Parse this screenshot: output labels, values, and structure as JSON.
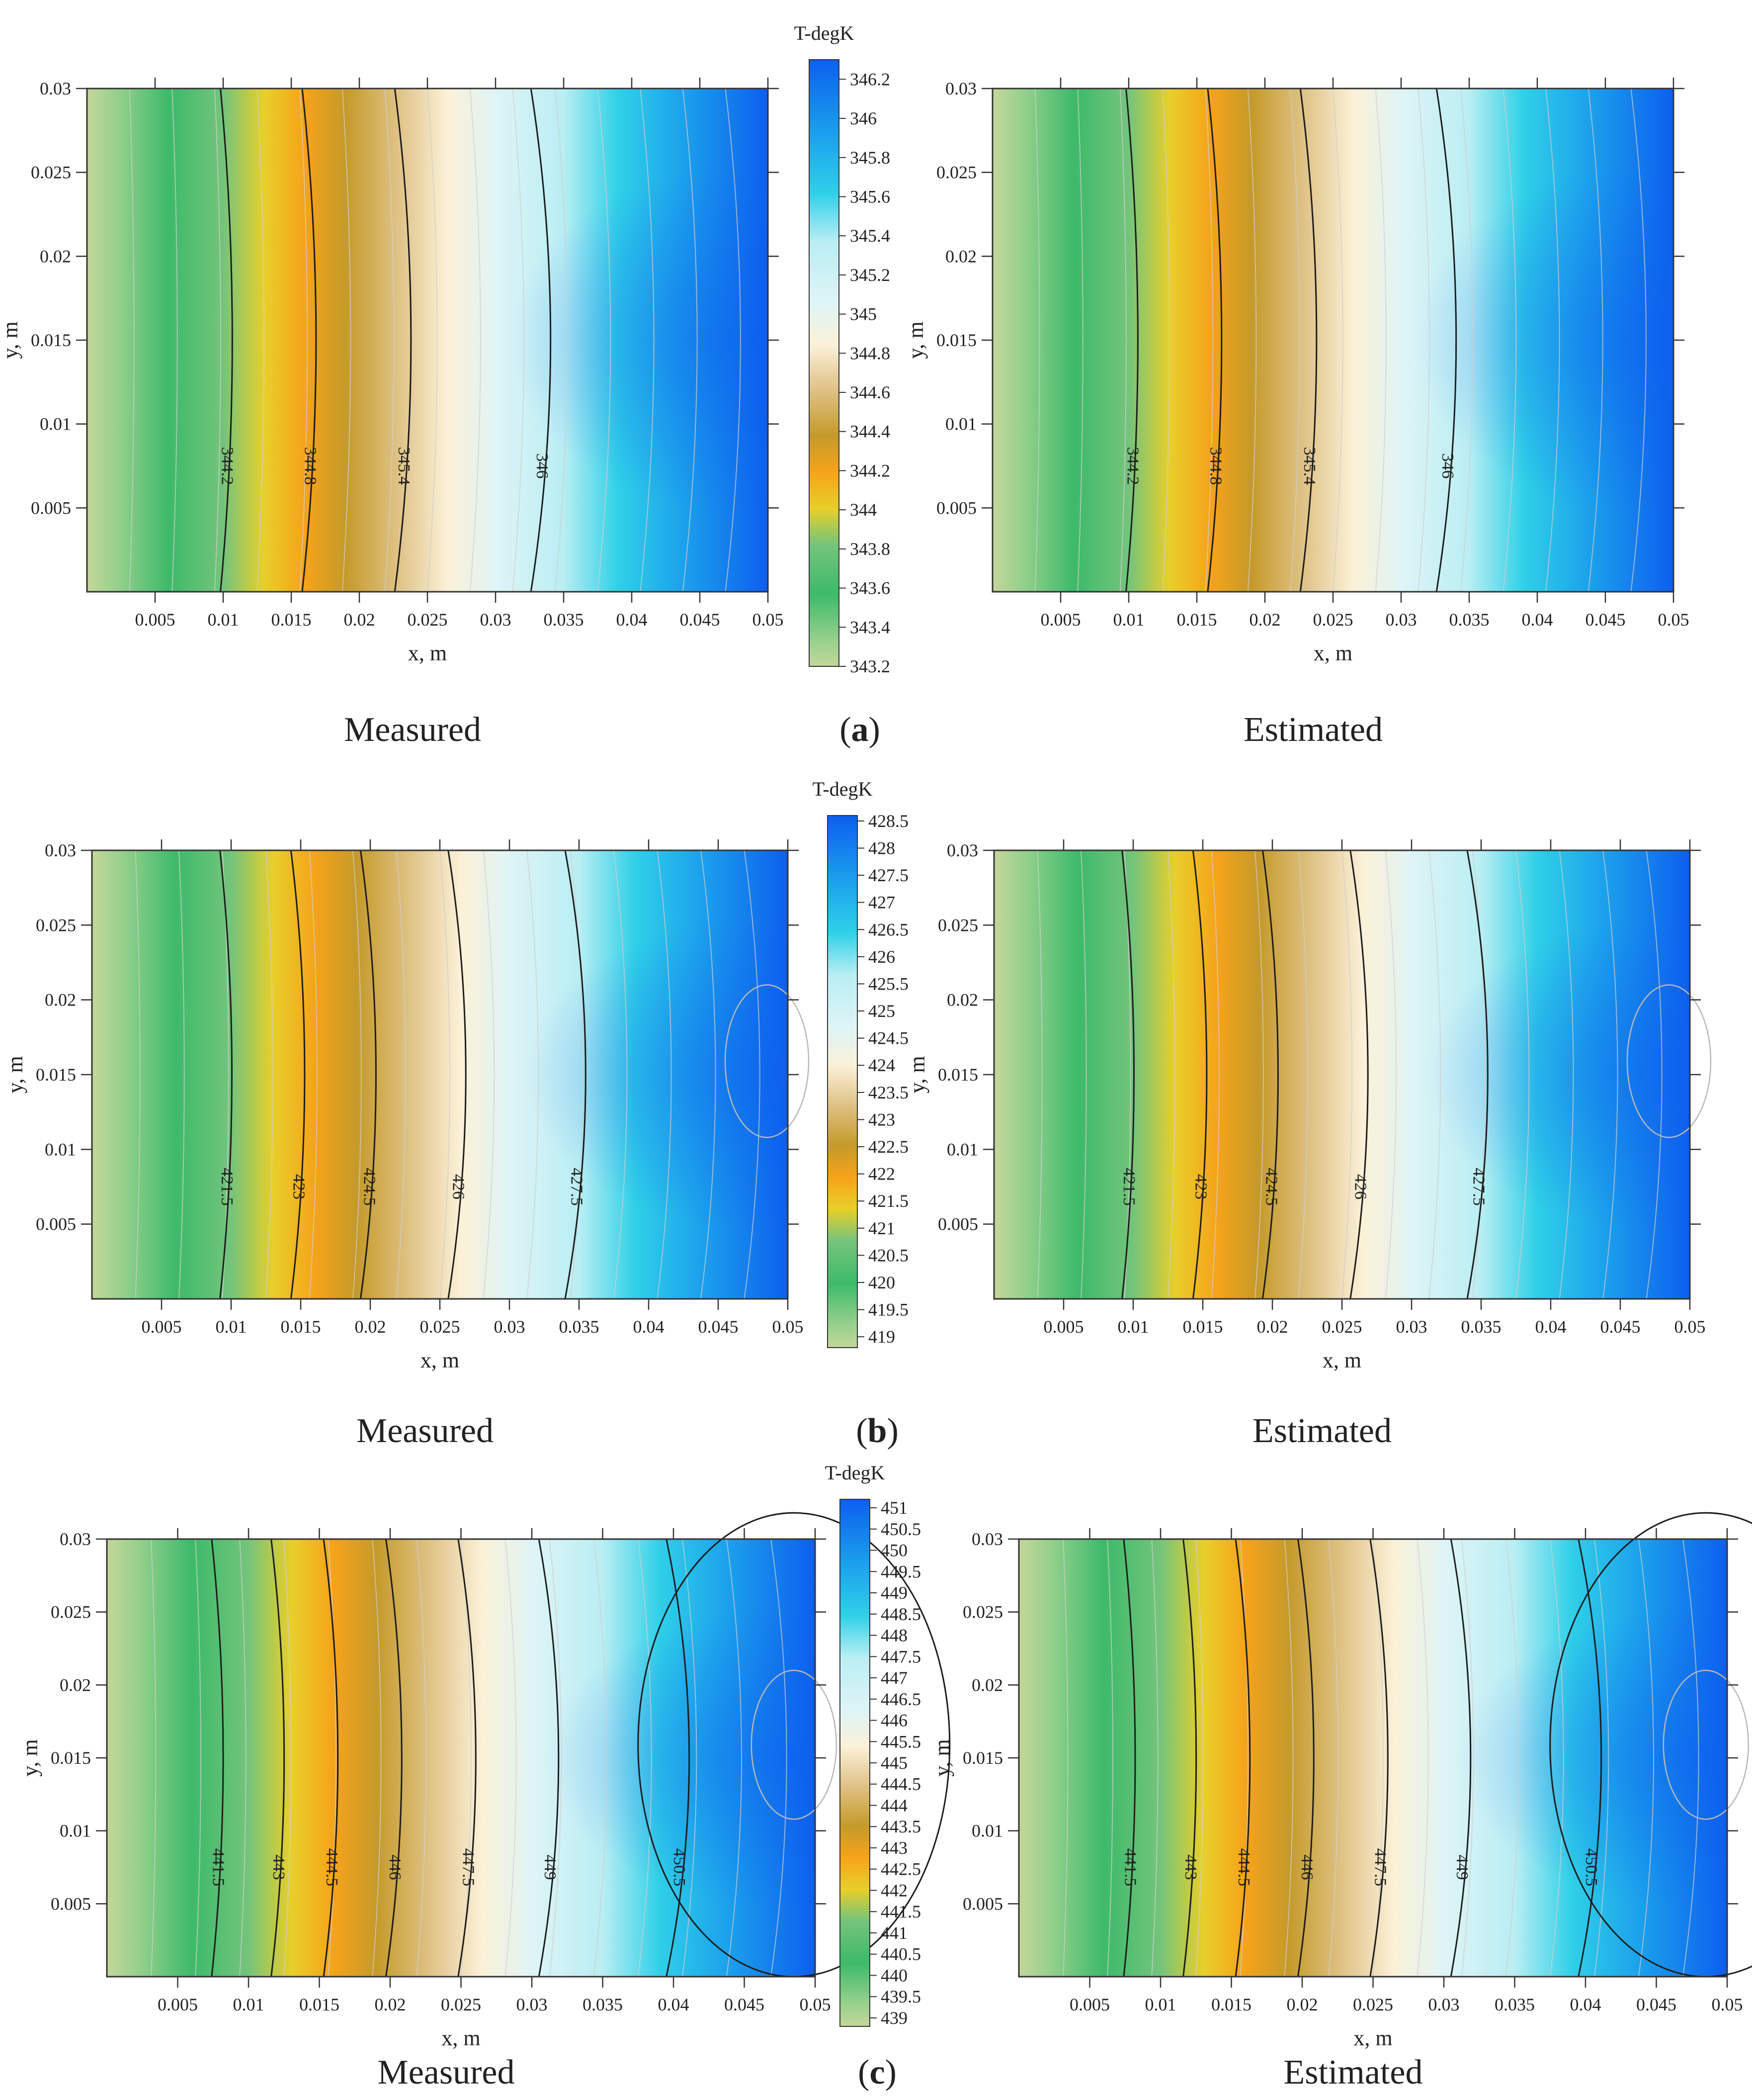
{
  "figure": {
    "colorbar_title": "T-degK",
    "x_axis_label": "x, m",
    "y_axis_label": "y, m",
    "left_caption": "Measured",
    "right_caption": "Estimated"
  },
  "chart_data": [
    {
      "type": "heatmap",
      "panel_label": "a",
      "title_left": "Measured",
      "title_right": "Estimated",
      "xlabel": "x, m",
      "ylabel": "y, m",
      "xlim": [
        0,
        0.05
      ],
      "ylim": [
        0,
        0.03
      ],
      "x_ticks": [
        0.005,
        0.01,
        0.015,
        0.02,
        0.025,
        0.03,
        0.035,
        0.04,
        0.045,
        0.05
      ],
      "y_ticks": [
        0.005,
        0.01,
        0.015,
        0.02,
        0.025,
        0.03
      ],
      "colorbar": {
        "title": "T-degK",
        "min": 343.2,
        "max": 346.3,
        "ticks": [
          343.2,
          343.4,
          343.6,
          343.8,
          344,
          344.2,
          344.4,
          344.6,
          344.8,
          345,
          345.2,
          345.4,
          345.6,
          345.8,
          346,
          346.2
        ]
      },
      "contour_labels": [
        {
          "value": 344.2,
          "x": 0.0098,
          "y": 0.0075
        },
        {
          "value": 344.8,
          "x": 0.0158,
          "y": 0.0075
        },
        {
          "value": 345.4,
          "x": 0.0226,
          "y": 0.0075
        },
        {
          "value": 346,
          "x": 0.0326,
          "y": 0.0075
        }
      ]
    },
    {
      "type": "heatmap",
      "panel_label": "b",
      "title_left": "Measured",
      "title_right": "Estimated",
      "xlabel": "x, m",
      "ylabel": "y, m",
      "xlim": [
        0,
        0.05
      ],
      "ylim": [
        0,
        0.03
      ],
      "x_ticks": [
        0.005,
        0.01,
        0.015,
        0.02,
        0.025,
        0.03,
        0.035,
        0.04,
        0.045,
        0.05
      ],
      "y_ticks": [
        0.005,
        0.01,
        0.015,
        0.02,
        0.025,
        0.03
      ],
      "colorbar": {
        "title": "T-degK",
        "min": 418.8,
        "max": 428.6,
        "ticks": [
          419,
          419.5,
          420,
          420.5,
          421,
          421.5,
          422,
          422.5,
          423,
          423.5,
          424,
          424.5,
          425,
          425.5,
          426,
          426.5,
          427,
          427.5,
          428,
          428.5
        ]
      },
      "contour_labels": [
        {
          "value": 421.5,
          "x": 0.0092,
          "y": 0.0075
        },
        {
          "value": 423,
          "x": 0.0143,
          "y": 0.0075
        },
        {
          "value": 424.5,
          "x": 0.0193,
          "y": 0.0075
        },
        {
          "value": 426,
          "x": 0.0256,
          "y": 0.0075
        },
        {
          "value": 427.5,
          "x": 0.034,
          "y": 0.0075
        }
      ]
    },
    {
      "type": "heatmap",
      "panel_label": "c",
      "title_left": "Measured",
      "title_right": "Estimated",
      "xlabel": "x, m",
      "ylabel": "y, m",
      "xlim": [
        0,
        0.05
      ],
      "ylim": [
        0,
        0.03
      ],
      "x_ticks": [
        0.005,
        0.01,
        0.015,
        0.02,
        0.025,
        0.03,
        0.035,
        0.04,
        0.045,
        0.05
      ],
      "y_ticks": [
        0.005,
        0.01,
        0.015,
        0.02,
        0.025,
        0.03
      ],
      "colorbar": {
        "title": "T-degK",
        "min": 438.8,
        "max": 451.2,
        "ticks": [
          439,
          439.5,
          440,
          440.5,
          441,
          441.5,
          442,
          442.5,
          443,
          443.5,
          444,
          444.5,
          445,
          445.5,
          446,
          446.5,
          447,
          447.5,
          448,
          448.5,
          449,
          449.5,
          450,
          450.5,
          451
        ]
      },
      "contour_labels": [
        {
          "value": 441.5,
          "x": 0.0074,
          "y": 0.0075
        },
        {
          "value": 443,
          "x": 0.0116,
          "y": 0.0075
        },
        {
          "value": 444.5,
          "x": 0.0153,
          "y": 0.0075
        },
        {
          "value": 446,
          "x": 0.0197,
          "y": 0.0075
        },
        {
          "value": 447.5,
          "x": 0.0248,
          "y": 0.0075
        },
        {
          "value": 449,
          "x": 0.0305,
          "y": 0.0075
        },
        {
          "value": 450.5,
          "x": 0.0395,
          "y": 0.0075
        }
      ]
    }
  ]
}
